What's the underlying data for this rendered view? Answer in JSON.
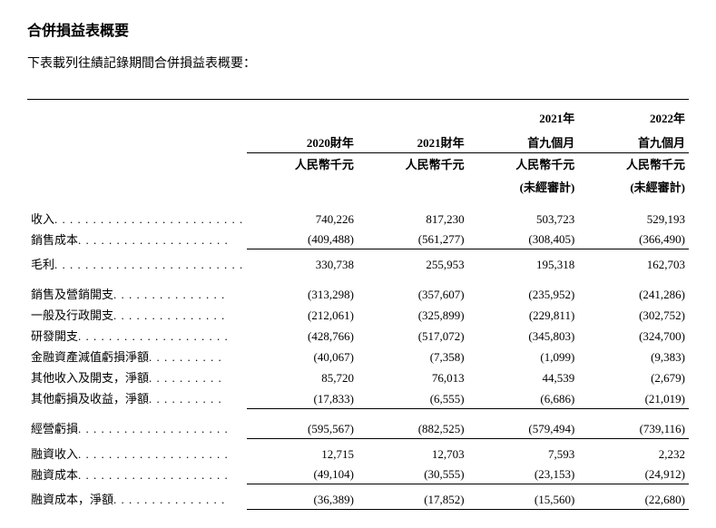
{
  "title": "合併損益表概要",
  "subtitle": "下表載列往績記錄期間合併損益表概要：",
  "headers": {
    "col1_line1": "",
    "col1_line2": "2020財年",
    "col2_line1": "",
    "col2_line2": "2021財年",
    "col3_line1": "2021年",
    "col3_line2": "首九個月",
    "col4_line1": "2022年",
    "col4_line2": "首九個月"
  },
  "units": {
    "u1": "人民幣千元",
    "u2": "人民幣千元",
    "u3_line1": "人民幣千元",
    "u3_line2": "(未經審計)",
    "u4_line1": "人民幣千元",
    "u4_line2": "(未經審計)"
  },
  "rows": {
    "r1": {
      "label": "收入",
      "v1": "740,226",
      "v2": "817,230",
      "v3": "503,723",
      "v4": "529,193"
    },
    "r2": {
      "label": "銷售成本",
      "v1": "(409,488)",
      "v2": "(561,277)",
      "v3": "(308,405)",
      "v4": "(366,490)"
    },
    "r3": {
      "label": "毛利",
      "v1": "330,738",
      "v2": "255,953",
      "v3": "195,318",
      "v4": "162,703"
    },
    "r4": {
      "label": "銷售及營銷開支",
      "v1": "(313,298)",
      "v2": "(357,607)",
      "v3": "(235,952)",
      "v4": "(241,286)"
    },
    "r5": {
      "label": "一般及行政開支",
      "v1": "(212,061)",
      "v2": "(325,899)",
      "v3": "(229,811)",
      "v4": "(302,752)"
    },
    "r6": {
      "label": "研發開支",
      "v1": "(428,766)",
      "v2": "(517,072)",
      "v3": "(345,803)",
      "v4": "(324,700)"
    },
    "r7": {
      "label": "金融資產減值虧損淨額",
      "v1": "(40,067)",
      "v2": "(7,358)",
      "v3": "(1,099)",
      "v4": "(9,383)"
    },
    "r8": {
      "label": "其他收入及開支，淨額",
      "v1": "85,720",
      "v2": "76,013",
      "v3": "44,539",
      "v4": "(2,679)"
    },
    "r9": {
      "label": "其他虧損及收益，淨額",
      "v1": "(17,833)",
      "v2": "(6,555)",
      "v3": "(6,686)",
      "v4": "(21,019)"
    },
    "r10": {
      "label": "經營虧損",
      "v1": "(595,567)",
      "v2": "(882,525)",
      "v3": "(579,494)",
      "v4": "(739,116)"
    },
    "r11": {
      "label": "融資收入",
      "v1": "12,715",
      "v2": "12,703",
      "v3": "7,593",
      "v4": "2,232"
    },
    "r12": {
      "label": "融資成本",
      "v1": "(49,104)",
      "v2": "(30,555)",
      "v3": "(23,153)",
      "v4": "(24,912)"
    },
    "r13": {
      "label": "融資成本，淨額",
      "v1": "(36,389)",
      "v2": "(17,852)",
      "v3": "(15,560)",
      "v4": "(22,680)"
    }
  },
  "dots_short": ". . . . . . . . . . . . . . . . . . . . . . . . .",
  "dots_med": ". . . . . . . . . . . . . . . . . . . .",
  "dots_long": ". . . . . . . . . . . . . . .",
  "dots_xlong": ". . . . . . . . . ."
}
